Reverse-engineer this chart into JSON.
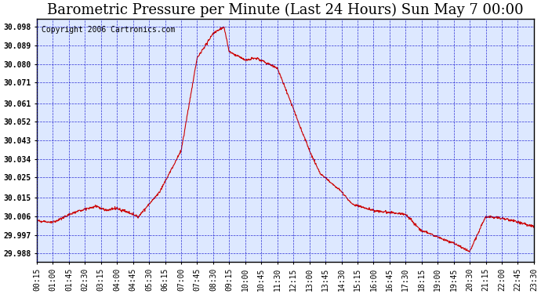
{
  "title": "Barometric Pressure per Minute (Last 24 Hours) Sun May 7 00:00",
  "copyright": "Copyright 2006 Cartronics.com",
  "yticks": [
    29.988,
    29.997,
    30.006,
    30.015,
    30.025,
    30.034,
    30.043,
    30.052,
    30.061,
    30.071,
    30.08,
    30.089,
    30.098
  ],
  "ylim": [
    29.984,
    30.102
  ],
  "xtick_labels": [
    "00:15",
    "01:00",
    "01:45",
    "02:30",
    "03:15",
    "04:00",
    "04:45",
    "05:30",
    "06:15",
    "07:00",
    "07:45",
    "08:30",
    "09:15",
    "10:00",
    "10:45",
    "11:30",
    "12:15",
    "13:00",
    "13:45",
    "14:30",
    "15:15",
    "16:00",
    "16:45",
    "17:30",
    "18:15",
    "19:00",
    "19:45",
    "20:30",
    "21:15",
    "22:00",
    "22:45",
    "23:30"
  ],
  "line_color": "#cc0000",
  "bg_color": "#dde8ff",
  "grid_color": "#0000cc",
  "title_fontsize": 13,
  "axis_label_fontsize": 7,
  "copyright_fontsize": 7
}
